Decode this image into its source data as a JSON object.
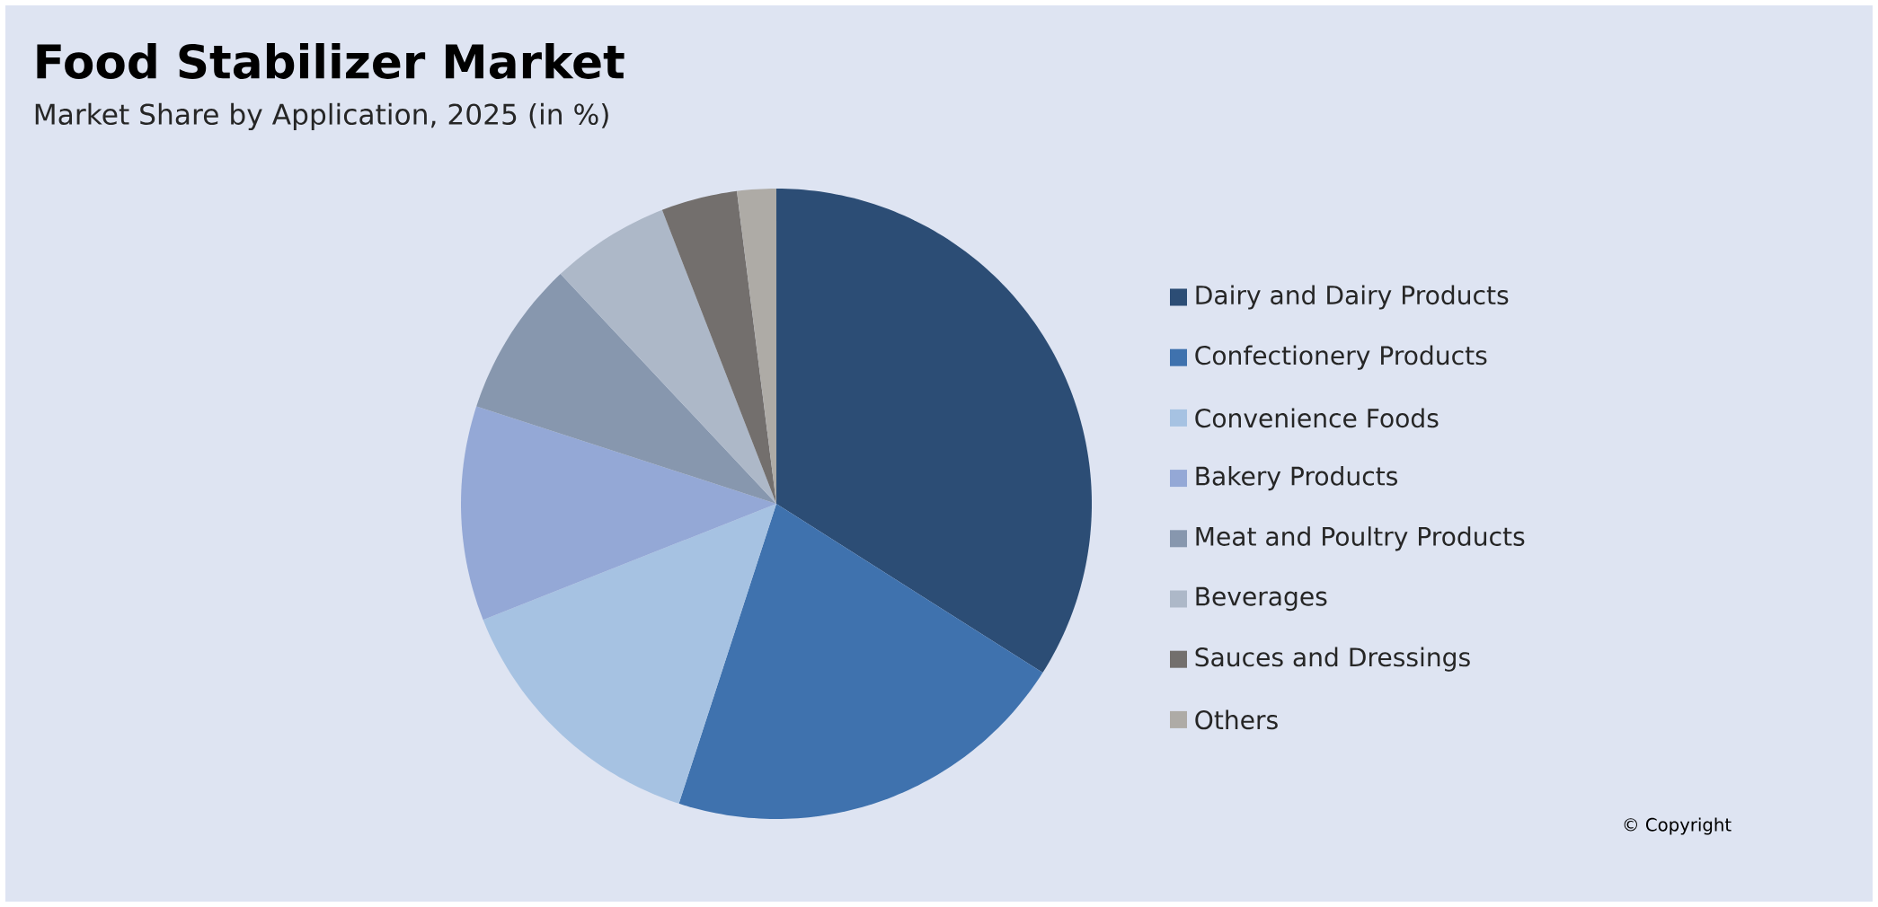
{
  "chart_data": {
    "type": "pie",
    "title": "Food Stabilizer Market",
    "subtitle": "Market Share by Application, 2025 (in %)",
    "categories": [
      "Dairy and Dairy Products",
      "Confectionery Products",
      "Convenience Foods",
      "Bakery Products",
      "Meat and Poultry Products",
      "Beverages",
      "Sauces and Dressings",
      "Others"
    ],
    "values": [
      34,
      21,
      14,
      11,
      8,
      6.1,
      3.9,
      2
    ],
    "colors": [
      "#2c4d75",
      "#3f72ae",
      "#a6c2e2",
      "#94a8d6",
      "#8797ae",
      "#adb8c8",
      "#736f6d",
      "#aeaba6"
    ],
    "legend": "right",
    "annotations": [
      "© Copyright"
    ]
  }
}
